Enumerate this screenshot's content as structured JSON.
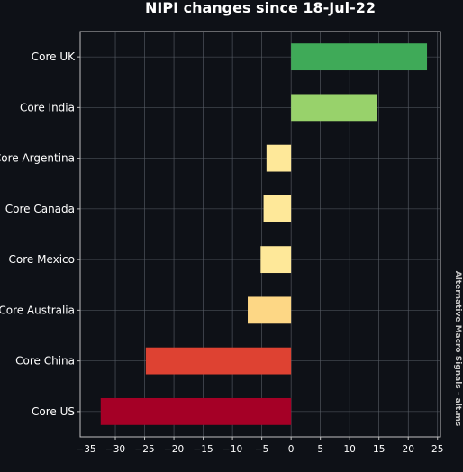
{
  "chart_data": {
    "type": "bar",
    "orientation": "horizontal",
    "title": "NIPI changes since 18-Jul-22",
    "categories": [
      "Core UK",
      "Core India",
      "Core Argentina",
      "Core Canada",
      "Core Mexico",
      "Core Australia",
      "Core China",
      "Core US"
    ],
    "values": [
      23.2,
      14.6,
      -4.2,
      -4.7,
      -5.2,
      -7.4,
      -24.8,
      -32.5
    ],
    "bar_colors": [
      "#3faa58",
      "#98d26b",
      "#fee899",
      "#fee899",
      "#fee899",
      "#fdd785",
      "#de4232",
      "#a50026"
    ],
    "xlim": [
      -36,
      25.5
    ],
    "xticks": [
      -35,
      -30,
      -25,
      -20,
      -15,
      -10,
      -5,
      0,
      5,
      10,
      15,
      20,
      25
    ],
    "xtick_labels": [
      "−35",
      "−30",
      "−25",
      "−20",
      "−15",
      "−10",
      "−5",
      "0",
      "5",
      "10",
      "15",
      "20",
      "25"
    ],
    "grid": true,
    "xlabel": "",
    "ylabel": ""
  },
  "watermark": "Alternative Macro Signals - alt.ms",
  "colors": {
    "background": "#0e1117",
    "text": "#ffffff",
    "grid": "#5a5f68"
  }
}
